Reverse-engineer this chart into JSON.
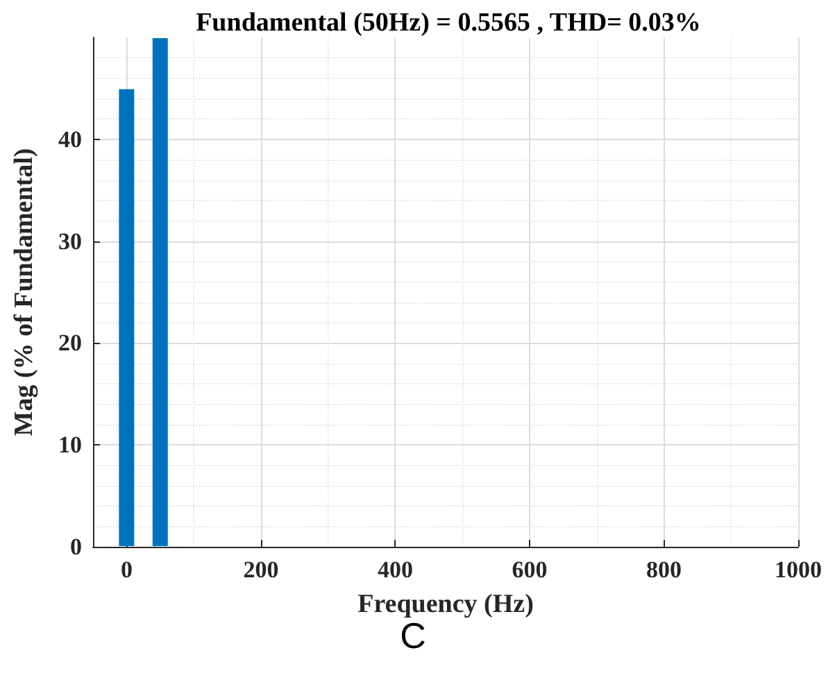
{
  "chart_data": {
    "type": "bar",
    "title": "Fundamental (50Hz) = 0.5565 , THD= 0.03%",
    "xlabel": "Frequency (Hz)",
    "ylabel": "Mag (% of Fundamental)",
    "annotations": [
      "C"
    ],
    "x": [
      0,
      50,
      150,
      250,
      350,
      450,
      550,
      650,
      750,
      850,
      950
    ],
    "values": [
      45,
      50,
      0,
      0,
      0,
      0,
      0,
      0,
      0,
      0,
      0
    ],
    "color": "#0072bd",
    "xlim": [
      -50,
      1000
    ],
    "xticks": [
      0,
      200,
      400,
      600,
      800,
      1000
    ],
    "ylim": [
      0,
      50
    ],
    "yticks": [
      0,
      10,
      20,
      30,
      40
    ],
    "grid": true
  }
}
